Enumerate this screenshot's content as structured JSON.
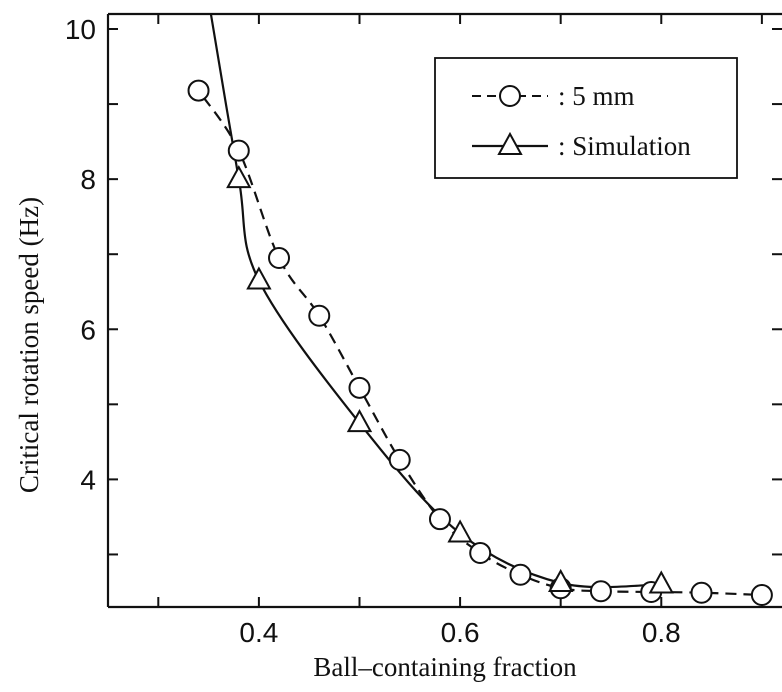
{
  "chart_data": {
    "type": "line",
    "title": "",
    "xlabel": "Ball–containing fraction",
    "ylabel": "Critical rotation speed (Hz)",
    "xlim": [
      0.25,
      0.92
    ],
    "ylim": [
      2.3,
      10.2
    ],
    "x_ticks": [
      0.3,
      0.4,
      0.5,
      0.6,
      0.7,
      0.8,
      0.9
    ],
    "x_tick_labels": [
      "0.4",
      "0.6",
      "0.8"
    ],
    "x_tick_label_values": [
      0.4,
      0.6,
      0.8
    ],
    "y_ticks": [
      3,
      4,
      5,
      6,
      7,
      8,
      9,
      10
    ],
    "y_tick_labels": [
      "4",
      "6",
      "8",
      "10"
    ],
    "y_tick_label_values": [
      4,
      6,
      8,
      10
    ],
    "legend": {
      "placement": "top-right",
      "entries": [
        ": 5 mm",
        ": Simulation"
      ]
    },
    "series": [
      {
        "name": ": 5 mm",
        "marker": "circle",
        "line": "dashed",
        "x": [
          0.34,
          0.38,
          0.42,
          0.46,
          0.5,
          0.54,
          0.58,
          0.62,
          0.66,
          0.7,
          0.74,
          0.79,
          0.84,
          0.9
        ],
        "y": [
          9.18,
          8.38,
          6.95,
          6.18,
          5.22,
          4.26,
          3.47,
          3.02,
          2.73,
          2.55,
          2.51,
          2.5,
          2.49,
          2.46
        ]
      },
      {
        "name": ": Simulation",
        "marker": "triangle",
        "line": "solid",
        "x": [
          0.38,
          0.4,
          0.5,
          0.6,
          0.7,
          0.8
        ],
        "y": [
          8.0,
          6.65,
          4.75,
          3.28,
          2.62,
          2.6
        ]
      }
    ],
    "grid": false
  }
}
